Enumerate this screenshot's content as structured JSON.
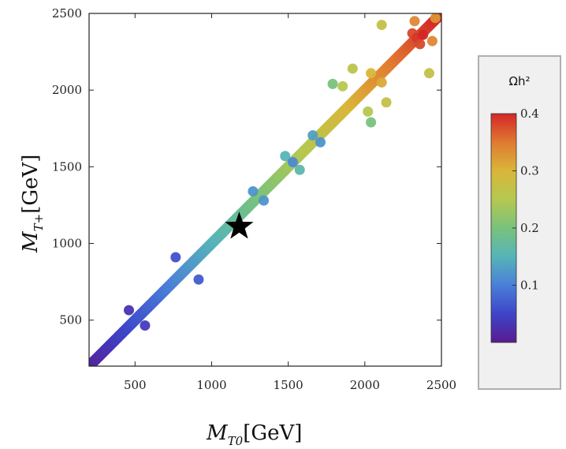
{
  "chart_data": {
    "type": "scatter",
    "xlabel_main": "M",
    "xlabel_sub": "T0",
    "xlabel_unit": "[GeV]",
    "ylabel_main": "M",
    "ylabel_sub": "T+",
    "ylabel_unit": "[GeV]",
    "xlim": [
      200,
      2500
    ],
    "ylim": [
      200,
      2500
    ],
    "xticks": [
      500,
      1000,
      1500,
      2000,
      2500
    ],
    "yticks": [
      500,
      1000,
      1500,
      2000,
      2500
    ],
    "colorbar": {
      "title": "Ωh²",
      "range": [
        0.0,
        0.4
      ],
      "ticks": [
        0.1,
        0.2,
        0.3,
        0.4
      ],
      "tick_labels": [
        "0.1",
        "0.2",
        "0.3",
        "0.4"
      ],
      "colors": [
        "#5a1a8f",
        "#3d45c8",
        "#4a7fd8",
        "#56b4b8",
        "#79c27c",
        "#b4c850",
        "#d9b63a",
        "#e07a32",
        "#d32727"
      ]
    },
    "band": {
      "description": "dense band of points",
      "x_start": 210,
      "x_end": 2480,
      "omega_start": 0.01,
      "omega_end": 0.4
    },
    "marker": {
      "symbol": "star",
      "x": 1180,
      "y": 1110
    },
    "points": [
      {
        "x": 460,
        "y": 565,
        "omega": 0.03
      },
      {
        "x": 565,
        "y": 465,
        "omega": 0.04
      },
      {
        "x": 765,
        "y": 910,
        "omega": 0.06
      },
      {
        "x": 915,
        "y": 765,
        "omega": 0.07
      },
      {
        "x": 1270,
        "y": 1340,
        "omega": 0.12
      },
      {
        "x": 1340,
        "y": 1280,
        "omega": 0.12
      },
      {
        "x": 1480,
        "y": 1570,
        "omega": 0.15
      },
      {
        "x": 1530,
        "y": 1530,
        "omega": 0.11
      },
      {
        "x": 1575,
        "y": 1480,
        "omega": 0.16
      },
      {
        "x": 1660,
        "y": 1705,
        "omega": 0.13
      },
      {
        "x": 1710,
        "y": 1660,
        "omega": 0.12
      },
      {
        "x": 1790,
        "y": 2040,
        "omega": 0.2
      },
      {
        "x": 1855,
        "y": 2025,
        "omega": 0.25
      },
      {
        "x": 1920,
        "y": 2140,
        "omega": 0.26
      },
      {
        "x": 2020,
        "y": 1860,
        "omega": 0.25
      },
      {
        "x": 2040,
        "y": 1790,
        "omega": 0.2
      },
      {
        "x": 2040,
        "y": 2110,
        "omega": 0.3
      },
      {
        "x": 2110,
        "y": 2425,
        "omega": 0.27
      },
      {
        "x": 2110,
        "y": 2050,
        "omega": 0.31
      },
      {
        "x": 2140,
        "y": 1920,
        "omega": 0.27
      },
      {
        "x": 2310,
        "y": 2370,
        "omega": 0.38
      },
      {
        "x": 2325,
        "y": 2450,
        "omega": 0.34
      },
      {
        "x": 2340,
        "y": 2340,
        "omega": 0.39
      },
      {
        "x": 2360,
        "y": 2300,
        "omega": 0.38
      },
      {
        "x": 2380,
        "y": 2360,
        "omega": 0.4
      },
      {
        "x": 2420,
        "y": 2110,
        "omega": 0.27
      },
      {
        "x": 2440,
        "y": 2320,
        "omega": 0.34
      },
      {
        "x": 2460,
        "y": 2470,
        "omega": 0.33
      }
    ]
  }
}
